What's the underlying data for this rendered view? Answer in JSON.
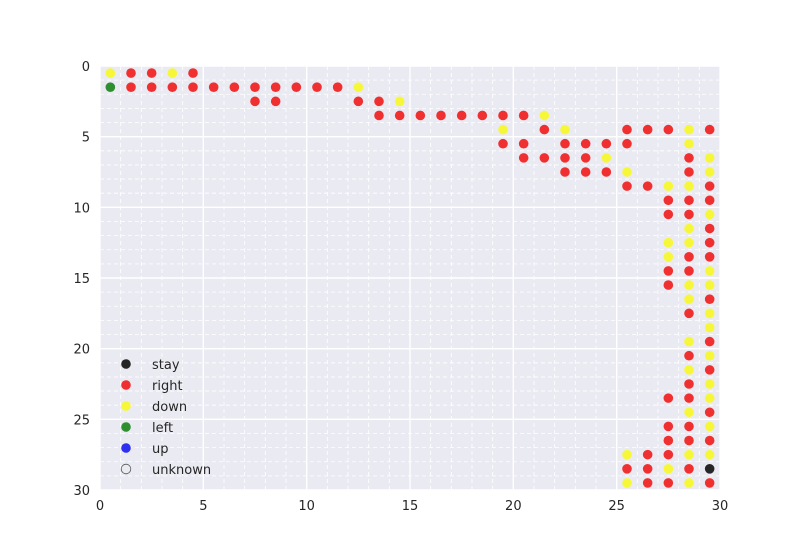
{
  "chart_data": {
    "type": "scatter",
    "title": "",
    "xlabel": "",
    "ylabel": "",
    "xlim": [
      0,
      30
    ],
    "ylim": [
      30,
      0
    ],
    "y_inverted": true,
    "grid": true,
    "minor_grid": true,
    "legend_position": "lower-left",
    "xticks": [
      "0",
      "5",
      "10",
      "15",
      "20",
      "25",
      "30"
    ],
    "yticks": [
      "0",
      "5",
      "10",
      "15",
      "20",
      "25",
      "30"
    ],
    "xtick_values": [
      0,
      5,
      10,
      15,
      20,
      25,
      30
    ],
    "ytick_values": [
      0,
      5,
      10,
      15,
      20,
      25,
      30
    ],
    "series": [
      {
        "name": "stay",
        "color": "#262626",
        "hollow": false,
        "points": [
          [
            29.5,
            28.5
          ]
        ]
      },
      {
        "name": "right",
        "color": "#f03030",
        "hollow": false,
        "points": [
          [
            1.5,
            0.5
          ],
          [
            2.5,
            0.5
          ],
          [
            4.5,
            0.5
          ],
          [
            1.5,
            1.5
          ],
          [
            2.5,
            1.5
          ],
          [
            3.5,
            1.5
          ],
          [
            4.5,
            1.5
          ],
          [
            5.5,
            1.5
          ],
          [
            6.5,
            1.5
          ],
          [
            7.5,
            1.5
          ],
          [
            8.5,
            1.5
          ],
          [
            9.5,
            1.5
          ],
          [
            10.5,
            1.5
          ],
          [
            11.5,
            1.5
          ],
          [
            7.5,
            2.5
          ],
          [
            8.5,
            2.5
          ],
          [
            12.5,
            2.5
          ],
          [
            13.5,
            2.5
          ],
          [
            13.5,
            3.5
          ],
          [
            14.5,
            3.5
          ],
          [
            15.5,
            3.5
          ],
          [
            16.5,
            3.5
          ],
          [
            17.5,
            3.5
          ],
          [
            18.5,
            3.5
          ],
          [
            19.5,
            3.5
          ],
          [
            20.5,
            3.5
          ],
          [
            21.5,
            4.5
          ],
          [
            25.5,
            4.5
          ],
          [
            26.5,
            4.5
          ],
          [
            27.5,
            4.5
          ],
          [
            29.5,
            4.5
          ],
          [
            19.5,
            5.5
          ],
          [
            20.5,
            5.5
          ],
          [
            22.5,
            5.5
          ],
          [
            23.5,
            5.5
          ],
          [
            24.5,
            5.5
          ],
          [
            25.5,
            5.5
          ],
          [
            20.5,
            6.5
          ],
          [
            21.5,
            6.5
          ],
          [
            22.5,
            6.5
          ],
          [
            23.5,
            6.5
          ],
          [
            28.5,
            6.5
          ],
          [
            22.5,
            7.5
          ],
          [
            23.5,
            7.5
          ],
          [
            24.5,
            7.5
          ],
          [
            28.5,
            7.5
          ],
          [
            25.5,
            8.5
          ],
          [
            26.5,
            8.5
          ],
          [
            29.5,
            8.5
          ],
          [
            27.5,
            9.5
          ],
          [
            28.5,
            9.5
          ],
          [
            29.5,
            9.5
          ],
          [
            27.5,
            10.5
          ],
          [
            28.5,
            10.5
          ],
          [
            29.5,
            11.5
          ],
          [
            29.5,
            12.5
          ],
          [
            28.5,
            13.5
          ],
          [
            29.5,
            13.5
          ],
          [
            27.5,
            14.5
          ],
          [
            28.5,
            14.5
          ],
          [
            27.5,
            15.5
          ],
          [
            29.5,
            16.5
          ],
          [
            28.5,
            17.5
          ],
          [
            29.5,
            19.5
          ],
          [
            28.5,
            20.5
          ],
          [
            29.5,
            21.5
          ],
          [
            28.5,
            22.5
          ],
          [
            27.5,
            23.5
          ],
          [
            28.5,
            23.5
          ],
          [
            29.5,
            24.5
          ],
          [
            27.5,
            25.5
          ],
          [
            28.5,
            25.5
          ],
          [
            27.5,
            26.5
          ],
          [
            28.5,
            26.5
          ],
          [
            29.5,
            26.5
          ],
          [
            26.5,
            27.5
          ],
          [
            27.5,
            27.5
          ],
          [
            25.5,
            28.5
          ],
          [
            26.5,
            28.5
          ],
          [
            28.5,
            28.5
          ],
          [
            26.5,
            29.5
          ],
          [
            27.5,
            29.5
          ],
          [
            29.5,
            29.5
          ]
        ]
      },
      {
        "name": "down",
        "color": "#f7f73a",
        "hollow": false,
        "points": [
          [
            0.5,
            0.5
          ],
          [
            3.5,
            0.5
          ],
          [
            12.5,
            1.5
          ],
          [
            14.5,
            2.5
          ],
          [
            21.5,
            3.5
          ],
          [
            19.5,
            4.5
          ],
          [
            22.5,
            4.5
          ],
          [
            28.5,
            4.5
          ],
          [
            28.5,
            5.5
          ],
          [
            24.5,
            6.5
          ],
          [
            29.5,
            6.5
          ],
          [
            25.5,
            7.5
          ],
          [
            29.5,
            7.5
          ],
          [
            27.5,
            8.5
          ],
          [
            28.5,
            8.5
          ],
          [
            29.5,
            10.5
          ],
          [
            28.5,
            11.5
          ],
          [
            27.5,
            12.5
          ],
          [
            28.5,
            12.5
          ],
          [
            27.5,
            13.5
          ],
          [
            29.5,
            14.5
          ],
          [
            28.5,
            15.5
          ],
          [
            29.5,
            15.5
          ],
          [
            28.5,
            16.5
          ],
          [
            29.5,
            17.5
          ],
          [
            29.5,
            18.5
          ],
          [
            28.5,
            19.5
          ],
          [
            29.5,
            20.5
          ],
          [
            28.5,
            21.5
          ],
          [
            29.5,
            22.5
          ],
          [
            29.5,
            23.5
          ],
          [
            28.5,
            24.5
          ],
          [
            28.5,
            27.5
          ],
          [
            29.5,
            27.5
          ],
          [
            25.5,
            27.5
          ],
          [
            27.5,
            28.5
          ],
          [
            25.5,
            29.5
          ],
          [
            28.5,
            29.5
          ],
          [
            29.5,
            25.5
          ]
        ]
      },
      {
        "name": "left",
        "color": "#2f8f2f",
        "hollow": false,
        "points": [
          [
            0.5,
            1.5
          ]
        ]
      },
      {
        "name": "up",
        "color": "#2f2ff0",
        "hollow": false,
        "points": []
      },
      {
        "name": "unknown",
        "color": "#ffffff",
        "hollow": true,
        "points": []
      }
    ]
  }
}
